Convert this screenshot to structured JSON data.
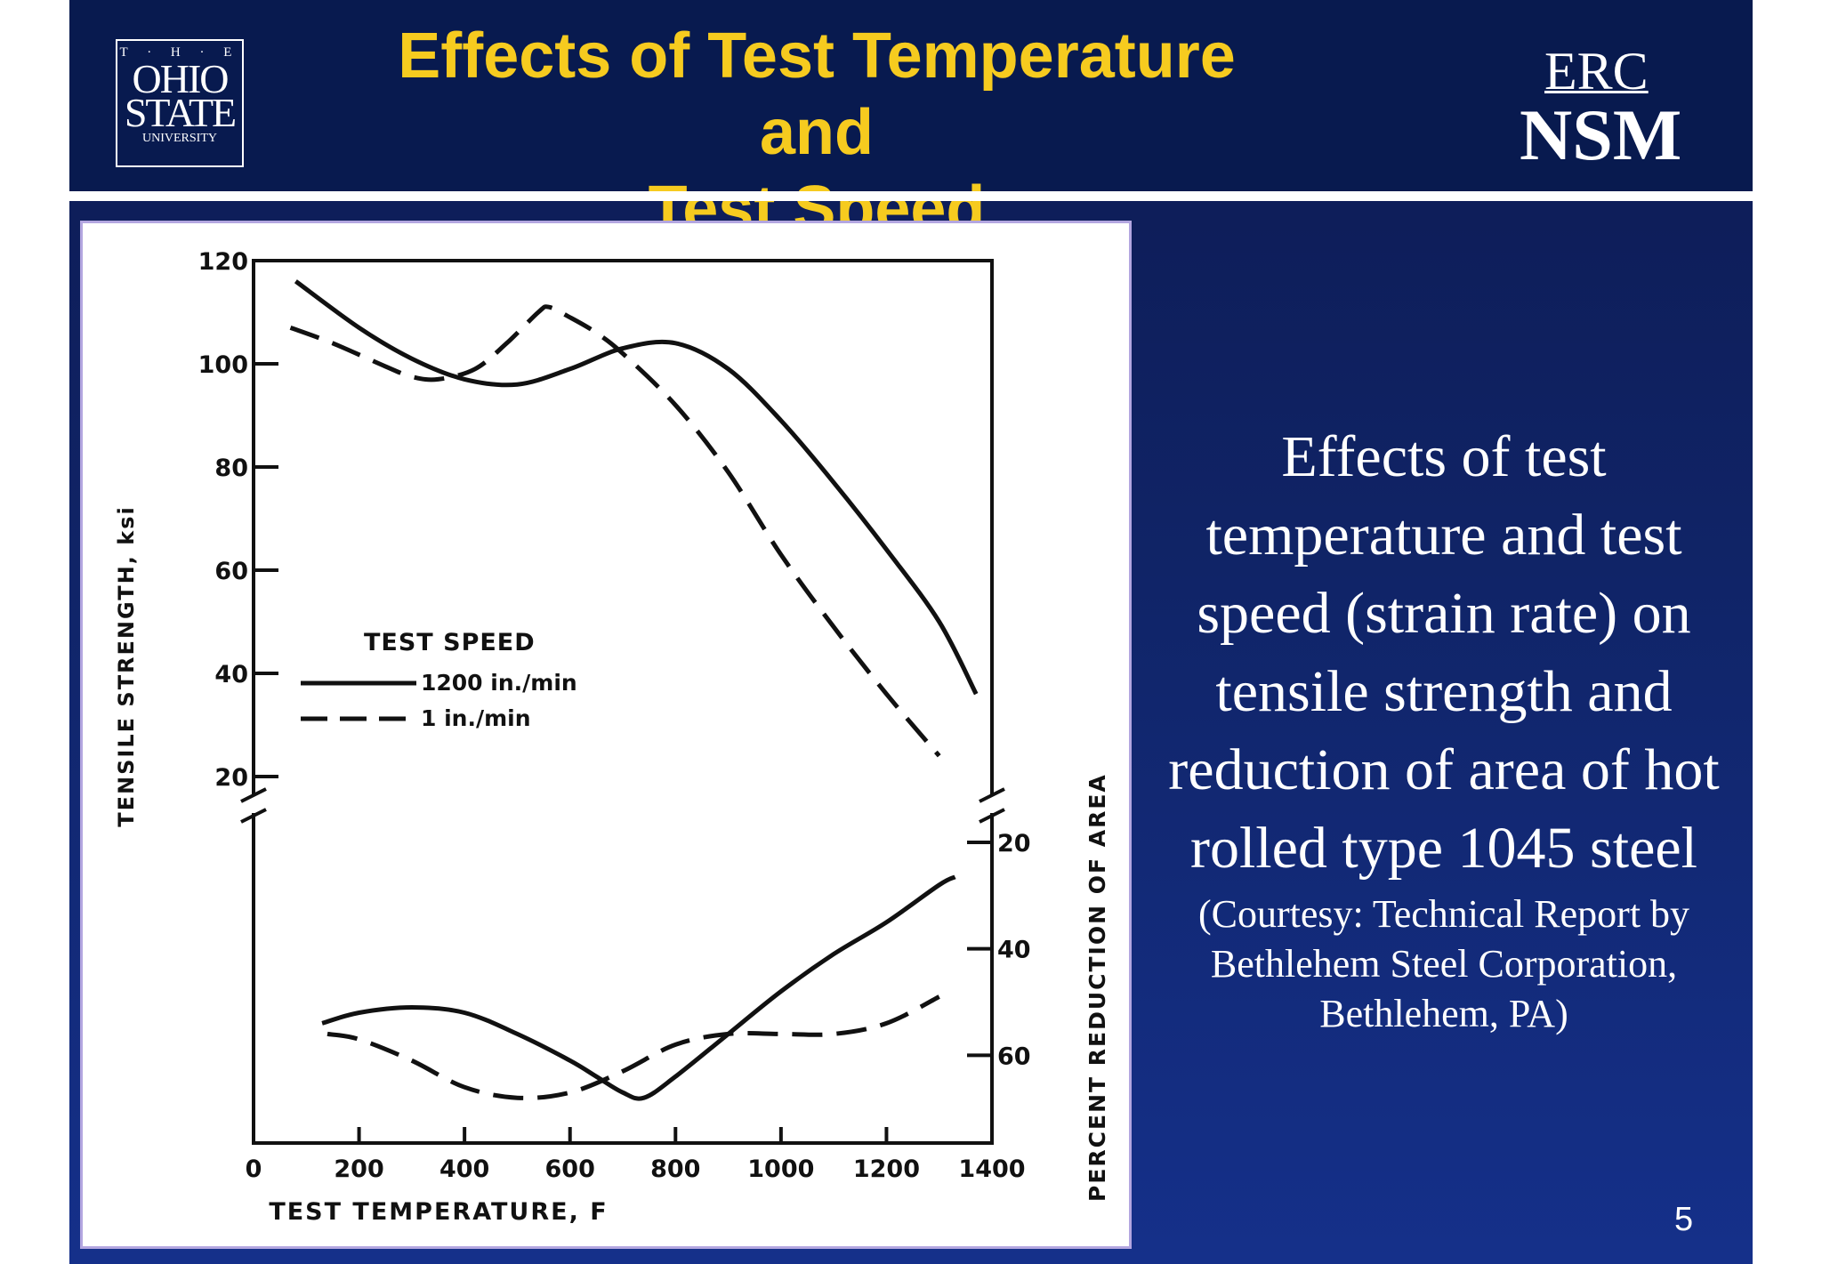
{
  "header": {
    "title_line1": "Effects of Test Temperature and",
    "title_line2": "Test Speed",
    "logo_left": {
      "the": "T · H · E",
      "ohio": "OHIO",
      "state": "STATE",
      "university": "UNIVERSITY"
    },
    "logo_right": {
      "erc": "ERC",
      "nsm": "NSM"
    }
  },
  "caption": {
    "main_lines": [
      "Effects of test",
      "temperature and test",
      "speed (strain rate) on",
      "tensile strength and",
      "reduction of area of hot",
      "rolled type 1045 steel"
    ],
    "courtesy_lines": [
      "(Courtesy: Technical Report by",
      "Bethlehem Steel Corporation,",
      "Bethlehem, PA)"
    ]
  },
  "page_number": "5",
  "colors": {
    "slide_bg": "#102467",
    "header_bg": "#081a4f",
    "title": "#f6cb1f",
    "figure_border": "#b3a6e0"
  },
  "chart_data": {
    "type": "line",
    "xlabel": "TEST TEMPERATURE, F",
    "ylabel": "TENSILE STRENGTH, ksi",
    "y2label": "PERCENT REDUCTION OF AREA",
    "x_ticks": [
      "0",
      "200",
      "400",
      "600",
      "800",
      "1000",
      "1200",
      "1400"
    ],
    "y_ticks": [
      "20",
      "40",
      "60",
      "80",
      "100",
      "120"
    ],
    "y2_ticks": [
      "20",
      "40",
      "60"
    ],
    "xlim": [
      0,
      1400
    ],
    "ylim": [
      20,
      120
    ],
    "y2lim": [
      20,
      80
    ],
    "y2_inverted": true,
    "axis_breaks": true,
    "grid": false,
    "legend": {
      "title": "TEST SPEED",
      "placement": "left-middle",
      "entries": [
        {
          "label": "1200 in./min",
          "style": "solid"
        },
        {
          "label": "1 in./min",
          "style": "dashed"
        }
      ]
    },
    "series": [
      {
        "name": "1200 in./min",
        "panel": "tensile_strength",
        "style": "solid",
        "x": [
          80,
          200,
          300,
          400,
          500,
          600,
          700,
          800,
          900,
          1000,
          1100,
          1200,
          1300,
          1370
        ],
        "y": [
          116,
          107,
          101,
          97,
          96,
          99,
          103,
          104,
          99,
          89,
          77,
          64,
          50,
          36
        ]
      },
      {
        "name": "1 in./min",
        "panel": "tensile_strength",
        "style": "dashed",
        "x": [
          70,
          150,
          250,
          300,
          350,
          420,
          480,
          540,
          560,
          600,
          650,
          700,
          800,
          900,
          1000,
          1100,
          1200,
          1300
        ],
        "y": [
          107,
          104,
          99.5,
          97.5,
          97,
          99,
          104,
          110,
          111,
          109,
          106,
          102,
          92,
          79,
          63,
          49,
          36,
          24
        ]
      },
      {
        "name": "1200 in./min",
        "panel": "reduction_of_area",
        "style": "solid",
        "x": [
          130,
          200,
          300,
          400,
          500,
          600,
          650,
          700,
          740,
          800,
          900,
          1000,
          1100,
          1200,
          1300,
          1330
        ],
        "y": [
          54,
          52,
          51,
          52,
          56,
          61,
          64,
          67,
          68,
          64,
          56,
          48,
          41,
          35,
          28,
          26.5
        ]
      },
      {
        "name": "1 in./min",
        "panel": "reduction_of_area",
        "style": "dashed",
        "x": [
          140,
          200,
          300,
          400,
          500,
          600,
          700,
          800,
          900,
          1000,
          1100,
          1200,
          1300
        ],
        "y": [
          56,
          57,
          61,
          66,
          68,
          67,
          63,
          58,
          56,
          56,
          56,
          54,
          49
        ]
      }
    ]
  }
}
